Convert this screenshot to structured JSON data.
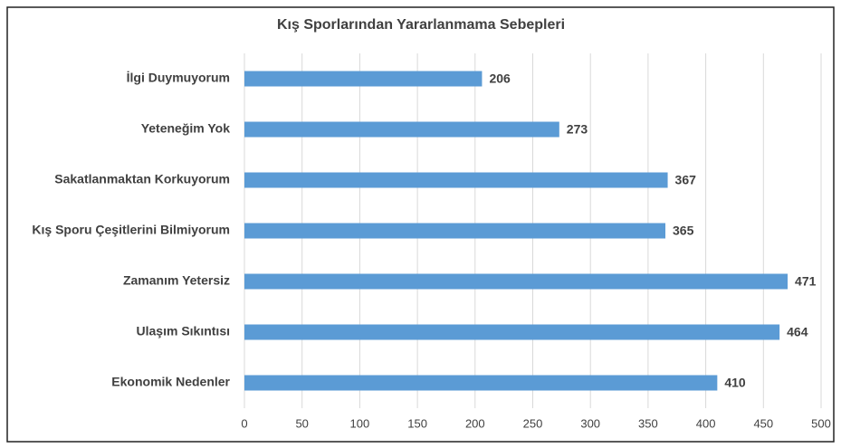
{
  "chart_data": {
    "type": "barh",
    "title": "Kış Sporlarından Yararlanmama Sebepleri",
    "categories": [
      "İlgi Duymuyorum",
      "Yeteneğim Yok",
      "Sakatlanmaktan Korkuyorum",
      "Kış Sporu Çeşitlerini Bilmiyorum",
      "Zamanım Yetersiz",
      "Ulaşım Sıkıntısı",
      "Ekonomik Nedenler"
    ],
    "values": [
      206,
      273,
      367,
      365,
      471,
      464,
      410
    ],
    "color": "#5b9bd5",
    "xlim": [
      0,
      500
    ],
    "xticks": [
      0,
      50,
      100,
      150,
      200,
      250,
      300,
      350,
      400,
      450,
      500
    ],
    "grid": true
  }
}
